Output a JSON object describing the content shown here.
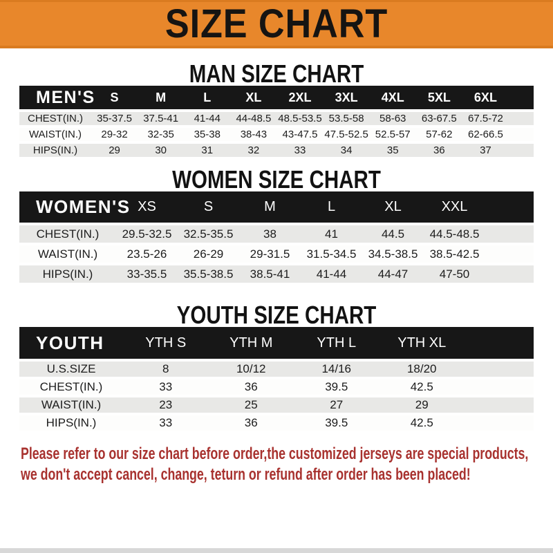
{
  "banner": {
    "title": "SIZE CHART"
  },
  "chart_data": [
    {
      "type": "table",
      "title": "MAN SIZE CHART",
      "columns": [
        "MEN'S",
        "S",
        "M",
        "L",
        "XL",
        "2XL",
        "3XL",
        "4XL",
        "5XL",
        "6XL"
      ],
      "rows": [
        [
          "CHEST(IN.)",
          "35-37.5",
          "37.5-41",
          "41-44",
          "44-48.5",
          "48.5-53.5",
          "53.5-58",
          "58-63",
          "63-67.5",
          "67.5-72"
        ],
        [
          "WAIST(IN.)",
          "29-32",
          "32-35",
          "35-38",
          "38-43",
          "43-47.5",
          "47.5-52.5",
          "52.5-57",
          "57-62",
          "62-66.5"
        ],
        [
          "HIPS(IN.)",
          "29",
          "30",
          "31",
          "32",
          "33",
          "34",
          "35",
          "36",
          "37"
        ]
      ]
    },
    {
      "type": "table",
      "title": "WOMEN SIZE CHART",
      "columns": [
        "WOMEN'S",
        "XS",
        "S",
        "M",
        "L",
        "XL",
        "XXL"
      ],
      "rows": [
        [
          "CHEST(IN.)",
          "29.5-32.5",
          "32.5-35.5",
          "38",
          "41",
          "44.5",
          "44.5-48.5"
        ],
        [
          "WAIST(IN.)",
          "23.5-26",
          "26-29",
          "29-31.5",
          "31.5-34.5",
          "34.5-38.5",
          "38.5-42.5"
        ],
        [
          "HIPS(IN.)",
          "33-35.5",
          "35.5-38.5",
          "38.5-41",
          "41-44",
          "44-47",
          "47-50"
        ]
      ]
    },
    {
      "type": "table",
      "title": "YOUTH SIZE CHART",
      "columns": [
        "YOUTH",
        "YTH S",
        "YTH M",
        "YTH L",
        "YTH XL"
      ],
      "rows": [
        [
          "U.S.SIZE",
          "8",
          "10/12",
          "14/16",
          "18/20"
        ],
        [
          "CHEST(IN.)",
          "33",
          "36",
          "39.5",
          "42.5"
        ],
        [
          "WAIST(IN.)",
          "23",
          "25",
          "27",
          "29"
        ],
        [
          "HIPS(IN.)",
          "33",
          "36",
          "39.5",
          "42.5"
        ]
      ]
    }
  ],
  "footer": {
    "line1": "Please refer to our size chart before order,the customized jerseys are special products,",
    "line2": "we don't accept cancel, change, teturn or refund after order has been placed!"
  },
  "colors": {
    "banner_bg": "#E8872B",
    "banner_border": "#DA7B20",
    "header_bar_bg": "#171717",
    "row_shade": "#E8E8E6",
    "footer_text": "#A8322F",
    "bottom_bar": "#D8D8D8"
  }
}
